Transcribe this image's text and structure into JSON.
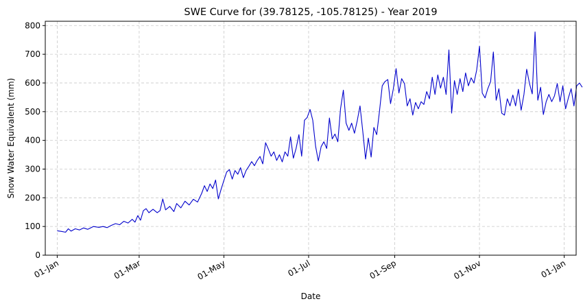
{
  "chart_data": {
    "type": "line",
    "title": "SWE Curve for (39.78125, -105.78125) - Year 2019",
    "xlabel": "Date",
    "ylabel": "Snow Water Equivalent (mm)",
    "x_range": [
      "2019-01-01",
      "2020-01-01"
    ],
    "ylim": [
      0,
      815
    ],
    "grid": true,
    "x_ticks": [
      {
        "date": "2019-01-01",
        "label": "01-Jan"
      },
      {
        "date": "2019-03-01",
        "label": "01-Mar"
      },
      {
        "date": "2019-05-01",
        "label": "01-May"
      },
      {
        "date": "2019-07-01",
        "label": "01-Jul"
      },
      {
        "date": "2019-09-01",
        "label": "01-Sep"
      },
      {
        "date": "2019-11-01",
        "label": "01-Nov"
      },
      {
        "date": "2020-01-01",
        "label": "01-Jan"
      }
    ],
    "y_ticks": [
      0,
      100,
      200,
      300,
      400,
      500,
      600,
      700,
      800
    ],
    "series": [
      {
        "color": "#0000cc",
        "points": [
          [
            "2019-01-01",
            85
          ],
          [
            "2019-01-04",
            83
          ],
          [
            "2019-01-07",
            80
          ],
          [
            "2019-01-09",
            92
          ],
          [
            "2019-01-11",
            84
          ],
          [
            "2019-01-14",
            92
          ],
          [
            "2019-01-17",
            88
          ],
          [
            "2019-01-20",
            95
          ],
          [
            "2019-01-23",
            90
          ],
          [
            "2019-01-27",
            100
          ],
          [
            "2019-01-31",
            97
          ],
          [
            "2019-02-03",
            100
          ],
          [
            "2019-02-06",
            96
          ],
          [
            "2019-02-09",
            104
          ],
          [
            "2019-02-12",
            110
          ],
          [
            "2019-02-15",
            106
          ],
          [
            "2019-02-18",
            118
          ],
          [
            "2019-02-21",
            112
          ],
          [
            "2019-02-24",
            125
          ],
          [
            "2019-02-26",
            115
          ],
          [
            "2019-02-28",
            138
          ],
          [
            "2019-03-02",
            122
          ],
          [
            "2019-03-04",
            155
          ],
          [
            "2019-03-06",
            162
          ],
          [
            "2019-03-08",
            148
          ],
          [
            "2019-03-11",
            160
          ],
          [
            "2019-03-14",
            148
          ],
          [
            "2019-03-16",
            155
          ],
          [
            "2019-03-18",
            196
          ],
          [
            "2019-03-20",
            158
          ],
          [
            "2019-03-23",
            170
          ],
          [
            "2019-03-26",
            152
          ],
          [
            "2019-03-28",
            180
          ],
          [
            "2019-03-31",
            165
          ],
          [
            "2019-04-03",
            188
          ],
          [
            "2019-04-06",
            175
          ],
          [
            "2019-04-09",
            195
          ],
          [
            "2019-04-12",
            185
          ],
          [
            "2019-04-15",
            215
          ],
          [
            "2019-04-17",
            242
          ],
          [
            "2019-04-19",
            222
          ],
          [
            "2019-04-21",
            248
          ],
          [
            "2019-04-23",
            232
          ],
          [
            "2019-04-25",
            262
          ],
          [
            "2019-04-27",
            196
          ],
          [
            "2019-04-29",
            230
          ],
          [
            "2019-05-01",
            260
          ],
          [
            "2019-05-03",
            290
          ],
          [
            "2019-05-05",
            298
          ],
          [
            "2019-05-07",
            265
          ],
          [
            "2019-05-09",
            295
          ],
          [
            "2019-05-11",
            282
          ],
          [
            "2019-05-13",
            305
          ],
          [
            "2019-05-15",
            270
          ],
          [
            "2019-05-17",
            295
          ],
          [
            "2019-05-19",
            310
          ],
          [
            "2019-05-21",
            326
          ],
          [
            "2019-05-23",
            312
          ],
          [
            "2019-05-25",
            330
          ],
          [
            "2019-05-27",
            344
          ],
          [
            "2019-05-29",
            318
          ],
          [
            "2019-05-31",
            392
          ],
          [
            "2019-06-02",
            370
          ],
          [
            "2019-06-04",
            345
          ],
          [
            "2019-06-06",
            360
          ],
          [
            "2019-06-08",
            330
          ],
          [
            "2019-06-10",
            350
          ],
          [
            "2019-06-12",
            325
          ],
          [
            "2019-06-14",
            360
          ],
          [
            "2019-06-16",
            345
          ],
          [
            "2019-06-18",
            412
          ],
          [
            "2019-06-20",
            338
          ],
          [
            "2019-06-22",
            372
          ],
          [
            "2019-06-24",
            420
          ],
          [
            "2019-06-26",
            345
          ],
          [
            "2019-06-28",
            470
          ],
          [
            "2019-06-30",
            480
          ],
          [
            "2019-07-02",
            508
          ],
          [
            "2019-07-04",
            470
          ],
          [
            "2019-07-06",
            380
          ],
          [
            "2019-07-08",
            328
          ],
          [
            "2019-07-10",
            378
          ],
          [
            "2019-07-12",
            395
          ],
          [
            "2019-07-14",
            372
          ],
          [
            "2019-07-16",
            478
          ],
          [
            "2019-07-18",
            405
          ],
          [
            "2019-07-20",
            422
          ],
          [
            "2019-07-22",
            395
          ],
          [
            "2019-07-24",
            510
          ],
          [
            "2019-07-26",
            575
          ],
          [
            "2019-07-28",
            460
          ],
          [
            "2019-07-30",
            435
          ],
          [
            "2019-08-01",
            460
          ],
          [
            "2019-08-03",
            425
          ],
          [
            "2019-08-05",
            468
          ],
          [
            "2019-08-07",
            520
          ],
          [
            "2019-08-09",
            432
          ],
          [
            "2019-08-11",
            335
          ],
          [
            "2019-08-13",
            408
          ],
          [
            "2019-08-15",
            342
          ],
          [
            "2019-08-17",
            445
          ],
          [
            "2019-08-19",
            420
          ],
          [
            "2019-08-21",
            500
          ],
          [
            "2019-08-23",
            590
          ],
          [
            "2019-08-25",
            605
          ],
          [
            "2019-08-27",
            612
          ],
          [
            "2019-08-29",
            528
          ],
          [
            "2019-08-31",
            580
          ],
          [
            "2019-09-02",
            650
          ],
          [
            "2019-09-04",
            565
          ],
          [
            "2019-09-06",
            615
          ],
          [
            "2019-09-08",
            598
          ],
          [
            "2019-09-10",
            520
          ],
          [
            "2019-09-12",
            545
          ],
          [
            "2019-09-14",
            488
          ],
          [
            "2019-09-16",
            532
          ],
          [
            "2019-09-18",
            510
          ],
          [
            "2019-09-20",
            535
          ],
          [
            "2019-09-22",
            525
          ],
          [
            "2019-09-24",
            570
          ],
          [
            "2019-09-26",
            545
          ],
          [
            "2019-09-28",
            620
          ],
          [
            "2019-09-30",
            560
          ],
          [
            "2019-10-02",
            628
          ],
          [
            "2019-10-04",
            582
          ],
          [
            "2019-10-06",
            620
          ],
          [
            "2019-10-08",
            560
          ],
          [
            "2019-10-10",
            715
          ],
          [
            "2019-10-12",
            495
          ],
          [
            "2019-10-14",
            608
          ],
          [
            "2019-10-16",
            560
          ],
          [
            "2019-10-18",
            615
          ],
          [
            "2019-10-20",
            570
          ],
          [
            "2019-10-22",
            635
          ],
          [
            "2019-10-24",
            590
          ],
          [
            "2019-10-26",
            618
          ],
          [
            "2019-10-28",
            600
          ],
          [
            "2019-10-30",
            645
          ],
          [
            "2019-11-01",
            728
          ],
          [
            "2019-11-03",
            565
          ],
          [
            "2019-11-05",
            548
          ],
          [
            "2019-11-07",
            580
          ],
          [
            "2019-11-09",
            605
          ],
          [
            "2019-11-11",
            708
          ],
          [
            "2019-11-13",
            540
          ],
          [
            "2019-11-15",
            580
          ],
          [
            "2019-11-17",
            495
          ],
          [
            "2019-11-19",
            488
          ],
          [
            "2019-11-21",
            545
          ],
          [
            "2019-11-23",
            520
          ],
          [
            "2019-11-25",
            558
          ],
          [
            "2019-11-27",
            520
          ],
          [
            "2019-11-29",
            578
          ],
          [
            "2019-12-01",
            505
          ],
          [
            "2019-12-03",
            560
          ],
          [
            "2019-12-05",
            648
          ],
          [
            "2019-12-07",
            598
          ],
          [
            "2019-12-09",
            562
          ],
          [
            "2019-12-11",
            778
          ],
          [
            "2019-12-13",
            540
          ],
          [
            "2019-12-15",
            585
          ],
          [
            "2019-12-17",
            490
          ],
          [
            "2019-12-19",
            535
          ],
          [
            "2019-12-21",
            560
          ],
          [
            "2019-12-23",
            535
          ],
          [
            "2019-12-25",
            555
          ],
          [
            "2019-12-27",
            598
          ],
          [
            "2019-12-29",
            535
          ],
          [
            "2019-12-31",
            590
          ],
          [
            "2020-01-02",
            510
          ],
          [
            "2020-01-04",
            548
          ],
          [
            "2020-01-06",
            580
          ],
          [
            "2020-01-08",
            520
          ],
          [
            "2020-01-10",
            590
          ],
          [
            "2020-01-12",
            600
          ],
          [
            "2020-01-14",
            585
          ]
        ]
      }
    ]
  }
}
